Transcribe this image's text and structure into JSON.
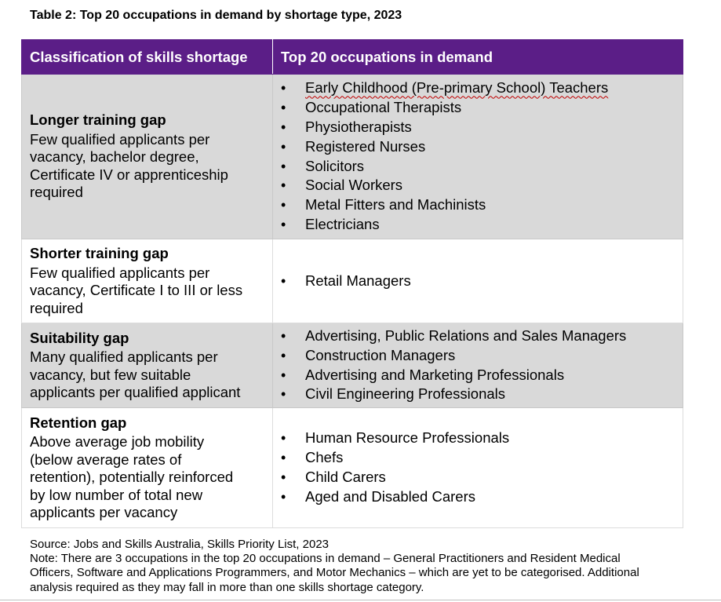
{
  "document": {
    "title": "Table 2: Top 20 occupations in demand by shortage type, 2023",
    "table": {
      "headers": {
        "classification": "Classification of skills shortage",
        "occupations": "Top 20 occupations in demand"
      },
      "rows": [
        {
          "title": "Longer training gap",
          "lines": [
            "Few qualified applicants per",
            "vacancy, bachelor degree,",
            "Certificate IV or apprenticeship",
            "required"
          ],
          "occupations": [
            "Early Childhood (Pre-primary School) Teachers",
            "Occupational Therapists",
            "Physiotherapists",
            "Registered Nurses",
            "Solicitors",
            "Social Workers",
            "Metal Fitters and Machinists",
            "Electricians"
          ]
        },
        {
          "title": "Shorter training gap",
          "lines": [
            "Few qualified applicants per",
            "vacancy, Certificate I to III or less",
            "required"
          ],
          "occupations": [
            "Retail Managers"
          ]
        },
        {
          "title": "Suitability gap",
          "lines": [
            "Many qualified applicants per",
            "vacancy, but few suitable",
            "applicants per qualified applicant"
          ],
          "occupations": [
            "Advertising, Public Relations and Sales Managers",
            "Construction Managers",
            "Advertising and Marketing Professionals",
            "Civil Engineering Professionals"
          ]
        },
        {
          "title": "Retention gap",
          "lines": [
            "Above average job mobility",
            "(below average rates of",
            "retention), potentially reinforced",
            "by low number of total new",
            "applicants per vacancy"
          ],
          "occupations": [
            "Human Resource Professionals",
            "Chefs",
            "Child Carers",
            "Aged and Disabled Carers"
          ]
        }
      ]
    },
    "notes": {
      "source": "Source: Jobs and Skills Australia, Skills Priority List, 2023",
      "note_lines": [
        "Note: There are 3 occupations in the top 20 occupations in demand – General Practitioners and Resident Medical",
        "Officers, Software and Applications Programmers, and Motor Mechanics – which are yet to be categorised. Additional",
        "analysis required as they may fall in more than one skills shortage category."
      ]
    },
    "bullet_glyph": "•",
    "colors": {
      "header_bg": "#5b1e87",
      "header_text": "#ffffff",
      "shaded_row": "#d9d9d9",
      "spellcheck_underline": "#c00000"
    }
  }
}
